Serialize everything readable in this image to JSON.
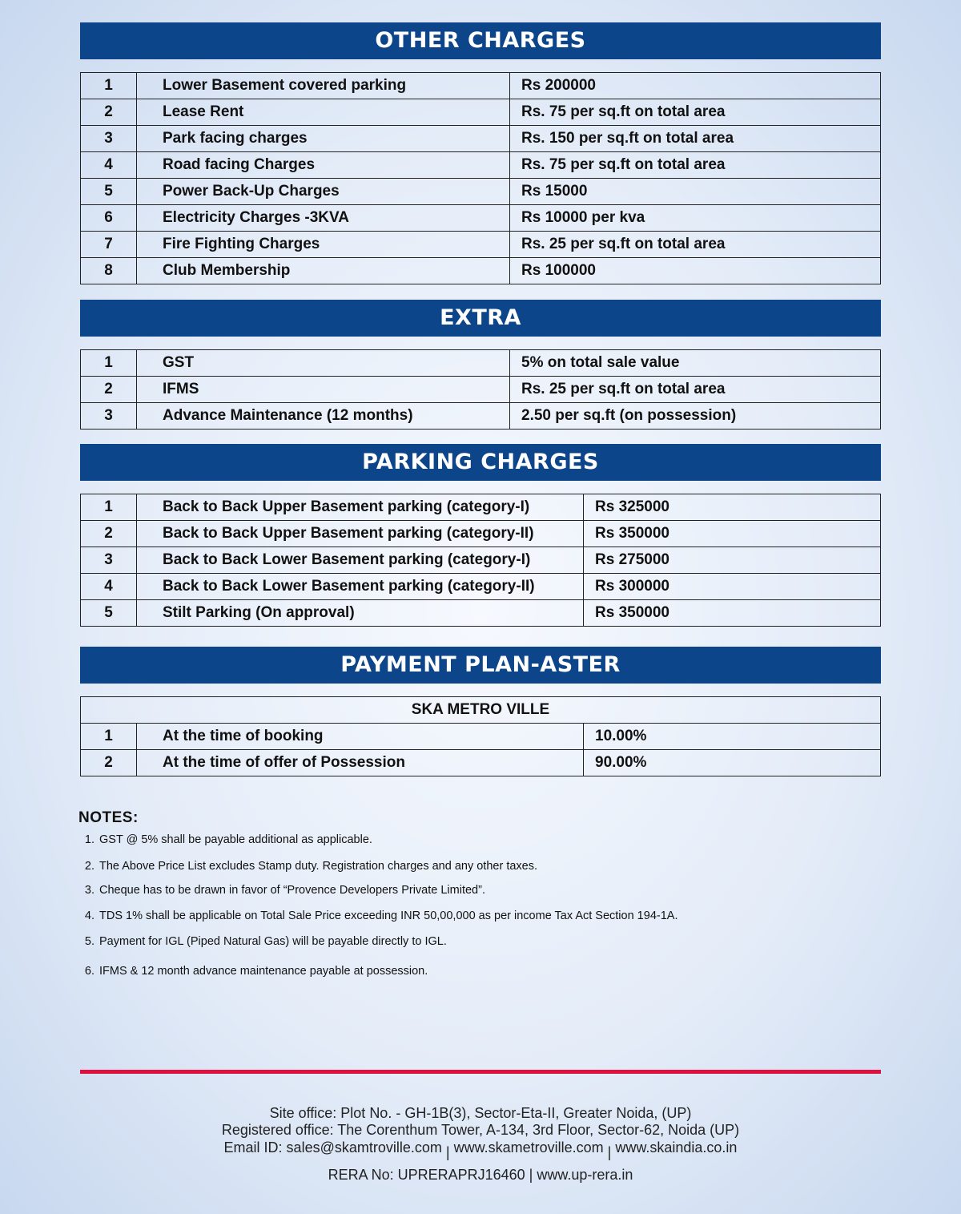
{
  "other_charges": {
    "title": "OTHER CHARGES",
    "rows": [
      {
        "no": "1",
        "item": "Lower Basement covered parking",
        "value": "Rs 200000"
      },
      {
        "no": "2",
        "item": "Lease Rent",
        "value": "Rs. 75 per sq.ft on total area"
      },
      {
        "no": "3",
        "item": "Park facing charges",
        "value": "Rs. 150 per sq.ft on total area"
      },
      {
        "no": "4",
        "item": "Road facing Charges",
        "value": "Rs. 75 per sq.ft on total area"
      },
      {
        "no": "5",
        "item": "Power Back-Up Charges",
        "value": "Rs 15000"
      },
      {
        "no": "6",
        "item": "Electricity Charges -3KVA",
        "value": "Rs 10000 per kva"
      },
      {
        "no": "7",
        "item": "Fire Fighting Charges",
        "value": "Rs. 25 per sq.ft on total area"
      },
      {
        "no": "8",
        "item": "Club Membership",
        "value": "Rs 100000"
      }
    ]
  },
  "extra": {
    "title": "EXTRA",
    "rows": [
      {
        "no": "1",
        "item": "GST",
        "value": "5% on total sale value"
      },
      {
        "no": "2",
        "item": "IFMS",
        "value": "Rs. 25 per sq.ft on total area"
      },
      {
        "no": "3",
        "item": "Advance Maintenance (12 months)",
        "value": "2.50 per sq.ft (on possession)"
      }
    ]
  },
  "parking_charges": {
    "title": "PARKING CHARGES",
    "rows": [
      {
        "no": "1",
        "item": "Back to Back Upper Basement  parking (category-I)",
        "value": "Rs 325000"
      },
      {
        "no": "2",
        "item": "Back to Back Upper Basement  parking (category-II)",
        "value": "Rs 350000"
      },
      {
        "no": "3",
        "item": "Back to Back Lower Basement  parking (category-I)",
        "value": "Rs 275000"
      },
      {
        "no": "4",
        "item": "Back to Back Lower Basement  parking (category-II)",
        "value": "Rs 300000"
      },
      {
        "no": "5",
        "item": "Stilt Parking (On approval)",
        "value": "Rs 350000"
      }
    ]
  },
  "payment_plan": {
    "title": "PAYMENT PLAN-ASTER",
    "project": "SKA METRO VILLE",
    "rows": [
      {
        "no": "1",
        "item": "At the time of booking",
        "value": "10.00%"
      },
      {
        "no": "2",
        "item": "At the time of offer of Possession",
        "value": "90.00%"
      }
    ]
  },
  "notes": {
    "heading": "NOTES:",
    "items": [
      "GST @ 5% shall be payable additional as applicable.",
      "The Above Price List excludes Stamp duty. Registration charges and any other taxes.",
      "Cheque has to be drawn in favor of “Provence Developers Private Limited”.",
      "TDS 1% shall be applicable on Total Sale Price exceeding INR 50,00,000 as per income Tax Act Section 194-1A.",
      "Payment for IGL (Piped Natural Gas) will be payable directly to IGL.",
      "IFMS & 12 month advance maintenance payable at possession."
    ]
  },
  "footer": {
    "site_office": "Site office: Plot No. - GH-1B(3), Sector-Eta-II, Greater Noida, (UP)",
    "registered_office": "Registered office: The Corenthum Tower, A-134, 3rd Floor, Sector-62, Noida (UP)",
    "email": "Email ID: sales@skamtroville.com",
    "website1": "www.skametroville.com",
    "website2": "www.skaindia.co.in",
    "rera": "RERA No: UPRERAPRJ16460 | www.up-rera.in"
  },
  "colors": {
    "header_bar": "#0c4589",
    "divider": "#e0103e"
  }
}
